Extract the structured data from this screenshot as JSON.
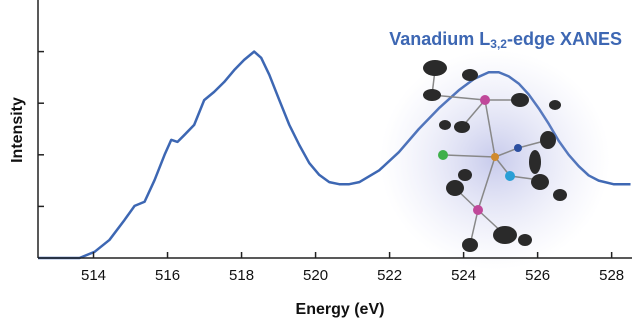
{
  "chart_data": {
    "type": "line",
    "title": {
      "text": "Vanadium L",
      "subscript": "3,2",
      "suffix": "-edge XANES"
    },
    "title_color": "#3d67b3",
    "xlabel": "Energy (eV)",
    "ylabel": "Intensity",
    "xlim": [
      512.5,
      528.55
    ],
    "ylim": [
      0,
      5
    ],
    "xticks": [
      514,
      516,
      518,
      520,
      522,
      524,
      526,
      528
    ],
    "yticks": [
      1,
      2,
      3,
      4
    ],
    "ytick_labels": false,
    "series": [
      {
        "color": "#3d67b3",
        "x": [
          512.5,
          513.62,
          514.03,
          514.43,
          514.84,
          515.11,
          515.38,
          515.65,
          515.92,
          516.1,
          516.27,
          516.45,
          516.72,
          516.99,
          517.26,
          517.53,
          517.8,
          518.07,
          518.34,
          518.53,
          518.75,
          519.02,
          519.29,
          519.56,
          519.83,
          520.1,
          520.37,
          520.64,
          520.91,
          521.18,
          521.72,
          522.25,
          522.79,
          523.33,
          523.87,
          524.28,
          524.68,
          524.95,
          525.22,
          525.49,
          525.76,
          526.03,
          526.3,
          526.57,
          526.84,
          527.11,
          527.38,
          527.65,
          528.05,
          528.51
        ],
        "values": [
          0,
          0,
          0.12,
          0.35,
          0.74,
          1.01,
          1.09,
          1.51,
          2.0,
          2.29,
          2.25,
          2.38,
          2.58,
          3.06,
          3.22,
          3.41,
          3.64,
          3.84,
          4.0,
          3.88,
          3.55,
          3.06,
          2.58,
          2.19,
          1.84,
          1.61,
          1.47,
          1.43,
          1.43,
          1.47,
          1.7,
          2.05,
          2.5,
          2.9,
          3.25,
          3.47,
          3.6,
          3.6,
          3.52,
          3.38,
          3.17,
          2.9,
          2.6,
          2.27,
          2.0,
          1.78,
          1.6,
          1.5,
          1.43,
          1.43
        ]
      }
    ]
  }
}
